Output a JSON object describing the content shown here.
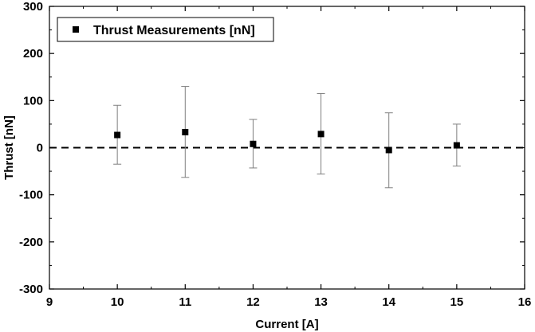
{
  "chart_data": {
    "type": "scatter",
    "xlabel": "Current [A]",
    "ylabel": "Thrust [nN]",
    "xlim": [
      9,
      16
    ],
    "ylim": [
      -300,
      300
    ],
    "x_ticks": [
      9,
      10,
      11,
      12,
      13,
      14,
      15,
      16
    ],
    "y_ticks": [
      -300,
      -200,
      -100,
      0,
      100,
      200,
      300
    ],
    "grid": false,
    "legend_position": "top-left",
    "reference_line": {
      "y": 0,
      "style": "dashed",
      "color": "#000000"
    },
    "series": [
      {
        "name": "Thrust Measurements [nN]",
        "marker": "square",
        "color": "#000000",
        "error_bar_color": "#7f7f7f",
        "x": [
          10,
          11,
          12,
          13,
          14,
          15
        ],
        "y": [
          27,
          33,
          8,
          29,
          -5,
          5
        ],
        "error_low": [
          -35,
          -63,
          -43,
          -56,
          -85,
          -39
        ],
        "error_high": [
          90,
          130,
          60,
          115,
          74,
          50
        ]
      }
    ]
  }
}
